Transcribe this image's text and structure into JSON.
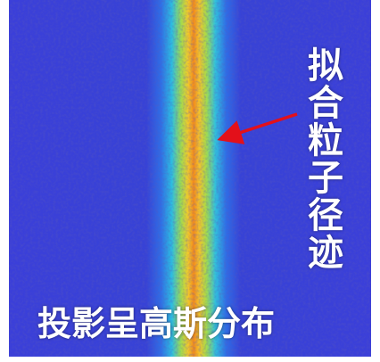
{
  "annotations": {
    "track_label": "拟合粒子径迹",
    "projection_label": "投影呈高斯分布"
  }
}
